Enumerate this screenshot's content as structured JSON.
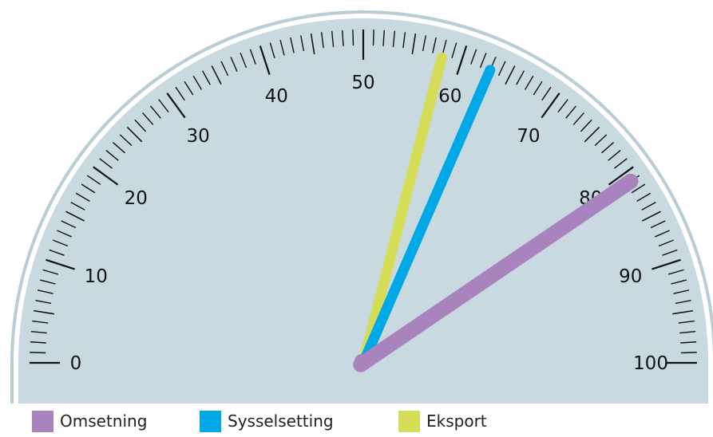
{
  "chart_data": {
    "type": "gauge",
    "title": "",
    "range": [
      0,
      100
    ],
    "major_ticks": [
      "0",
      "10",
      "20",
      "30",
      "40",
      "50",
      "60",
      "70",
      "80",
      "90",
      "100"
    ],
    "minor_tick_step": 1,
    "grid": false,
    "legend_position": "bottom-left",
    "series": [
      {
        "name": "Omsetning",
        "value": 81,
        "color": "#a983bd"
      },
      {
        "name": "Sysselsetting",
        "value": 63,
        "color": "#00a9e6"
      },
      {
        "name": "Eksport",
        "value": 58,
        "color": "#d4dd55"
      }
    ],
    "colors": {
      "dial_face": "#c8d9e0",
      "dial_ring": "#b9cdd4",
      "tick": "#111111"
    }
  }
}
